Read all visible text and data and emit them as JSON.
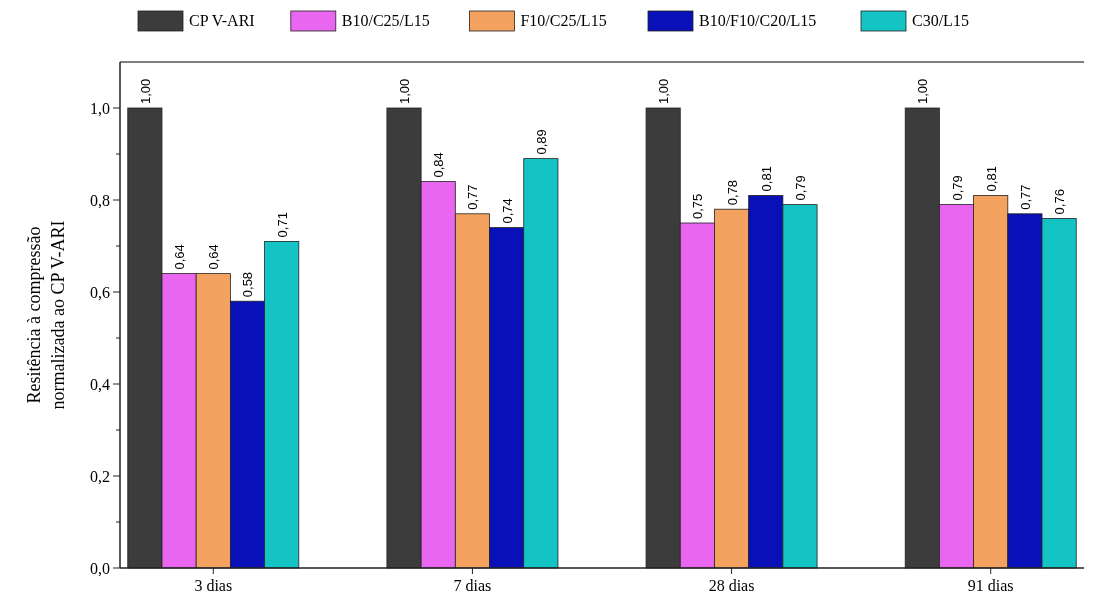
{
  "chart_data": {
    "type": "bar",
    "ylabel": "Resitência à compressão normalizada ao CP V-ARI",
    "categories": [
      "3 dias",
      "7 dias",
      "28 dias",
      "91 dias"
    ],
    "series": [
      {
        "name": "CP V-ARI",
        "color": "#3c3c3c",
        "values": [
          1.0,
          1.0,
          1.0,
          1.0
        ],
        "value_labels": [
          "1,00",
          "1,00",
          "1,00",
          "1,00"
        ]
      },
      {
        "name": "B10/C25/L15",
        "color": "#e866f0",
        "values": [
          0.64,
          0.84,
          0.75,
          0.79
        ],
        "value_labels": [
          "0,64",
          "0,84",
          "0,75",
          "0,79"
        ]
      },
      {
        "name": "F10/C25/L15",
        "color": "#f4a260",
        "values": [
          0.64,
          0.77,
          0.78,
          0.81
        ],
        "value_labels": [
          "0,64",
          "0,77",
          "0,78",
          "0,81"
        ]
      },
      {
        "name": "B10/F10/C20/L15",
        "color": "#0a10b8",
        "values": [
          0.58,
          0.74,
          0.81,
          0.77
        ],
        "value_labels": [
          "0,58",
          "0,74",
          "0,81",
          "0,77"
        ]
      },
      {
        "name": "C30/L15",
        "color": "#14c4c4",
        "values": [
          0.71,
          0.89,
          0.79,
          0.76
        ],
        "value_labels": [
          "0,71",
          "0,89",
          "0,79",
          "0,76"
        ]
      }
    ],
    "ylim": [
      0,
      1.1
    ],
    "yticks": [
      {
        "value": 0,
        "label": "0,0"
      },
      {
        "value": 0.1,
        "label": null
      },
      {
        "value": 0.2,
        "label": "0,2"
      },
      {
        "value": 0.3,
        "label": null
      },
      {
        "value": 0.4,
        "label": "0,4"
      },
      {
        "value": 0.5,
        "label": null
      },
      {
        "value": 0.6,
        "label": "0,6"
      },
      {
        "value": 0.7,
        "label": null
      },
      {
        "value": 0.8,
        "label": "0,8"
      },
      {
        "value": 0.9,
        "label": null
      },
      {
        "value": 1.0,
        "label": "1,0"
      }
    ],
    "grid": false,
    "legend": "top"
  }
}
